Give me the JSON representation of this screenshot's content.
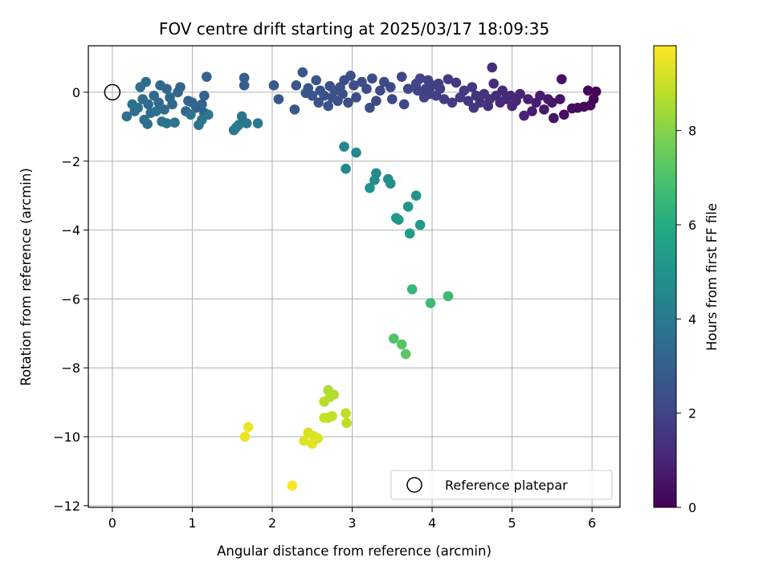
{
  "chart_data": {
    "type": "scatter",
    "title": "FOV centre drift starting at 2025/03/17 18:09:35",
    "xlabel": "Angular distance from reference (arcmin)",
    "ylabel": "Rotation from reference (arcmin)",
    "xlim": [
      -0.3,
      6.35
    ],
    "ylim": [
      -12.05,
      1.35
    ],
    "xticks": [
      "0",
      "1",
      "2",
      "3",
      "4",
      "5",
      "6"
    ],
    "yticks": [
      "0",
      "−2",
      "−4",
      "−6",
      "−8",
      "−10",
      "−12"
    ],
    "grid": true,
    "legend": {
      "placement": "lower-right",
      "entries": [
        "Reference platepar"
      ]
    },
    "reference_point": {
      "x": 0,
      "y": 0,
      "marker": "open-circle"
    },
    "colorbar": {
      "label": "Hours from first FF file",
      "range": [
        0,
        9.8
      ],
      "ticks": [
        "0",
        "2",
        "4",
        "6",
        "8"
      ],
      "colormap": "viridis"
    },
    "series": [
      {
        "color_by": "hours",
        "points": [
          {
            "x": 6.02,
            "y": -0.2,
            "h": 0.05
          },
          {
            "x": 6.05,
            "y": 0.02,
            "h": 0.1
          },
          {
            "x": 5.95,
            "y": 0.05,
            "h": 0.15
          },
          {
            "x": 5.98,
            "y": -0.38,
            "h": 0.2
          },
          {
            "x": 5.9,
            "y": -0.42,
            "h": 0.25
          },
          {
            "x": 5.82,
            "y": -0.45,
            "h": 0.3
          },
          {
            "x": 5.75,
            "y": -0.47,
            "h": 0.35
          },
          {
            "x": 5.65,
            "y": -0.65,
            "h": 0.4
          },
          {
            "x": 5.62,
            "y": 0.38,
            "h": 0.45
          },
          {
            "x": 5.6,
            "y": -0.2,
            "h": 0.5
          },
          {
            "x": 5.52,
            "y": -0.75,
            "h": 0.55
          },
          {
            "x": 5.5,
            "y": -0.3,
            "h": 0.6
          },
          {
            "x": 5.45,
            "y": -0.2,
            "h": 0.65
          },
          {
            "x": 5.4,
            "y": -0.5,
            "h": 0.7
          },
          {
            "x": 5.35,
            "y": -0.1,
            "h": 0.75
          },
          {
            "x": 5.3,
            "y": -0.3,
            "h": 0.8
          },
          {
            "x": 5.25,
            "y": -0.55,
            "h": 0.85
          },
          {
            "x": 5.2,
            "y": -0.2,
            "h": 0.9
          },
          {
            "x": 5.15,
            "y": -0.68,
            "h": 0.95
          },
          {
            "x": 5.1,
            "y": -0.05,
            "h": 1.0
          },
          {
            "x": 5.05,
            "y": -0.25,
            "h": 1.05
          },
          {
            "x": 5.0,
            "y": -0.4,
            "h": 1.1
          },
          {
            "x": 4.98,
            "y": -0.1,
            "h": 1.12
          },
          {
            "x": 4.92,
            "y": -0.2,
            "h": 1.15
          },
          {
            "x": 4.88,
            "y": 0.05,
            "h": 1.18
          },
          {
            "x": 4.85,
            "y": -0.3,
            "h": 1.2
          },
          {
            "x": 4.8,
            "y": -0.1,
            "h": 1.25
          },
          {
            "x": 4.77,
            "y": 0.25,
            "h": 1.3
          },
          {
            "x": 4.75,
            "y": 0.72,
            "h": 1.33
          },
          {
            "x": 4.72,
            "y": -0.2,
            "h": 1.35
          },
          {
            "x": 4.7,
            "y": -0.4,
            "h": 1.38
          },
          {
            "x": 4.65,
            "y": -0.05,
            "h": 1.4
          },
          {
            "x": 4.6,
            "y": -0.3,
            "h": 1.45
          },
          {
            "x": 4.55,
            "y": -0.1,
            "h": 1.5
          },
          {
            "x": 4.52,
            "y": -0.45,
            "h": 1.52
          },
          {
            "x": 4.5,
            "y": 0.15,
            "h": 1.55
          },
          {
            "x": 4.45,
            "y": -0.25,
            "h": 1.6
          },
          {
            "x": 4.4,
            "y": 0.05,
            "h": 1.62
          },
          {
            "x": 4.35,
            "y": -0.15,
            "h": 1.65
          },
          {
            "x": 4.3,
            "y": 0.28,
            "h": 1.68
          },
          {
            "x": 4.25,
            "y": -0.3,
            "h": 1.7
          },
          {
            "x": 4.2,
            "y": 0.38,
            "h": 1.72
          },
          {
            "x": 4.15,
            "y": -0.2,
            "h": 1.75
          },
          {
            "x": 4.1,
            "y": 0.1,
            "h": 1.78
          },
          {
            "x": 4.08,
            "y": 0.25,
            "h": 1.8
          },
          {
            "x": 4.05,
            "y": -0.1,
            "h": 1.82
          },
          {
            "x": 4.0,
            "y": 0.2,
            "h": 1.85
          },
          {
            "x": 3.98,
            "y": -0.05,
            "h": 1.86
          },
          {
            "x": 3.95,
            "y": 0.35,
            "h": 1.88
          },
          {
            "x": 3.92,
            "y": 0.1,
            "h": 1.9
          },
          {
            "x": 3.9,
            "y": -0.15,
            "h": 1.92
          },
          {
            "x": 3.85,
            "y": 0.4,
            "h": 1.95
          },
          {
            "x": 3.82,
            "y": 0.05,
            "h": 1.97
          },
          {
            "x": 3.8,
            "y": 0.25,
            "h": 2.0
          },
          {
            "x": 3.7,
            "y": 0.1,
            "h": 2.03
          },
          {
            "x": 3.65,
            "y": -0.35,
            "h": 2.05
          },
          {
            "x": 3.62,
            "y": 0.45,
            "h": 2.07
          },
          {
            "x": 3.5,
            "y": -0.2,
            "h": 2.1
          },
          {
            "x": 3.48,
            "y": 0.15,
            "h": 2.12
          },
          {
            "x": 3.4,
            "y": 0.3,
            "h": 2.15
          },
          {
            "x": 3.35,
            "y": 0.05,
            "h": 2.17
          },
          {
            "x": 3.3,
            "y": -0.25,
            "h": 2.19
          },
          {
            "x": 3.25,
            "y": 0.4,
            "h": 2.2
          },
          {
            "x": 3.22,
            "y": -0.45,
            "h": 2.22
          },
          {
            "x": 3.18,
            "y": 0.1,
            "h": 2.24
          },
          {
            "x": 3.12,
            "y": 0.3,
            "h": 2.26
          },
          {
            "x": 3.05,
            "y": -0.15,
            "h": 2.28
          },
          {
            "x": 3.02,
            "y": 0.2,
            "h": 2.3
          },
          {
            "x": 2.98,
            "y": 0.48,
            "h": 2.31
          },
          {
            "x": 2.95,
            "y": -0.3,
            "h": 2.32
          },
          {
            "x": 2.9,
            "y": 0.35,
            "h": 2.34
          },
          {
            "x": 2.88,
            "y": -0.05,
            "h": 2.36
          },
          {
            "x": 2.85,
            "y": 0.15,
            "h": 2.38
          },
          {
            "x": 2.82,
            "y": -0.25,
            "h": 2.4
          },
          {
            "x": 2.78,
            "y": 0.05,
            "h": 2.42
          },
          {
            "x": 2.75,
            "y": -0.15,
            "h": 2.44
          },
          {
            "x": 2.72,
            "y": 0.18,
            "h": 2.46
          },
          {
            "x": 2.7,
            "y": -0.4,
            "h": 2.48
          },
          {
            "x": 2.65,
            "y": -0.1,
            "h": 2.5
          },
          {
            "x": 2.6,
            "y": 0.05,
            "h": 2.52
          },
          {
            "x": 2.58,
            "y": -0.3,
            "h": 2.54
          },
          {
            "x": 2.55,
            "y": 0.35,
            "h": 2.56
          },
          {
            "x": 2.5,
            "y": -0.1,
            "h": 2.58
          },
          {
            "x": 2.45,
            "y": 0.12,
            "h": 2.6
          },
          {
            "x": 2.42,
            "y": -0.02,
            "h": 2.62
          },
          {
            "x": 2.38,
            "y": 0.58,
            "h": 2.64
          },
          {
            "x": 2.3,
            "y": 0.2,
            "h": 2.66
          },
          {
            "x": 2.28,
            "y": -0.5,
            "h": 2.68
          },
          {
            "x": 2.08,
            "y": -0.2,
            "h": 2.7
          },
          {
            "x": 2.02,
            "y": 0.2,
            "h": 2.72
          },
          {
            "x": 1.65,
            "y": 0.42,
            "h": 2.9
          },
          {
            "x": 1.65,
            "y": 0.2,
            "h": 2.92
          },
          {
            "x": 1.18,
            "y": 0.45,
            "h": 3.0
          },
          {
            "x": 1.15,
            "y": -0.1,
            "h": 3.02
          },
          {
            "x": 1.12,
            "y": -0.35,
            "h": 3.05
          },
          {
            "x": 1.15,
            "y": -0.6,
            "h": 3.08
          },
          {
            "x": 1.05,
            "y": -0.45,
            "h": 3.1
          },
          {
            "x": 1.0,
            "y": -0.3,
            "h": 3.12
          },
          {
            "x": 0.95,
            "y": -0.25,
            "h": 3.15
          },
          {
            "x": 0.92,
            "y": -0.55,
            "h": 3.18
          },
          {
            "x": 0.85,
            "y": 0.15,
            "h": 3.2
          },
          {
            "x": 0.82,
            "y": 0.0,
            "h": 3.22
          },
          {
            "x": 0.75,
            "y": -0.35,
            "h": 3.25
          },
          {
            "x": 0.72,
            "y": -0.15,
            "h": 3.27
          },
          {
            "x": 0.68,
            "y": 0.1,
            "h": 3.3
          },
          {
            "x": 0.65,
            "y": -0.5,
            "h": 3.32
          },
          {
            "x": 0.6,
            "y": 0.2,
            "h": 3.35
          },
          {
            "x": 0.58,
            "y": -0.3,
            "h": 3.38
          },
          {
            "x": 0.52,
            "y": -0.1,
            "h": 3.4
          },
          {
            "x": 0.48,
            "y": -0.6,
            "h": 3.42
          },
          {
            "x": 0.45,
            "y": -0.35,
            "h": 3.45
          },
          {
            "x": 0.42,
            "y": 0.3,
            "h": 3.47
          },
          {
            "x": 0.38,
            "y": -0.2,
            "h": 3.5
          },
          {
            "x": 0.35,
            "y": 0.15,
            "h": 3.52
          },
          {
            "x": 0.32,
            "y": -0.45,
            "h": 3.55
          },
          {
            "x": 0.28,
            "y": -0.55,
            "h": 3.58
          },
          {
            "x": 0.25,
            "y": -0.35,
            "h": 3.6
          },
          {
            "x": 0.18,
            "y": -0.7,
            "h": 3.62
          },
          {
            "x": 0.4,
            "y": -0.8,
            "h": 3.64
          },
          {
            "x": 0.44,
            "y": -0.92,
            "h": 3.66
          },
          {
            "x": 0.62,
            "y": -0.85,
            "h": 3.68
          },
          {
            "x": 0.68,
            "y": -0.9,
            "h": 3.7
          },
          {
            "x": 0.78,
            "y": -0.88,
            "h": 3.72
          },
          {
            "x": 0.55,
            "y": -0.55,
            "h": 3.74
          },
          {
            "x": 0.98,
            "y": -0.65,
            "h": 3.76
          },
          {
            "x": 1.08,
            "y": -0.95,
            "h": 3.78
          },
          {
            "x": 1.12,
            "y": -0.8,
            "h": 3.8
          },
          {
            "x": 1.2,
            "y": -0.65,
            "h": 3.82
          },
          {
            "x": 1.62,
            "y": -0.7,
            "h": 3.85
          },
          {
            "x": 1.68,
            "y": -0.9,
            "h": 3.88
          },
          {
            "x": 1.58,
            "y": -0.95,
            "h": 3.9
          },
          {
            "x": 1.52,
            "y": -1.1,
            "h": 3.92
          },
          {
            "x": 1.55,
            "y": -1.02,
            "h": 3.94
          },
          {
            "x": 1.82,
            "y": -0.9,
            "h": 3.96
          },
          {
            "x": 2.9,
            "y": -1.58,
            "h": 4.5
          },
          {
            "x": 3.05,
            "y": -1.75,
            "h": 4.55
          },
          {
            "x": 2.92,
            "y": -2.22,
            "h": 4.6
          },
          {
            "x": 3.3,
            "y": -2.35,
            "h": 4.7
          },
          {
            "x": 3.28,
            "y": -2.55,
            "h": 4.75
          },
          {
            "x": 3.45,
            "y": -2.52,
            "h": 4.8
          },
          {
            "x": 3.48,
            "y": -2.65,
            "h": 4.85
          },
          {
            "x": 3.22,
            "y": -2.78,
            "h": 4.9
          },
          {
            "x": 3.8,
            "y": -3.0,
            "h": 5.0
          },
          {
            "x": 3.7,
            "y": -3.32,
            "h": 5.1
          },
          {
            "x": 3.55,
            "y": -3.65,
            "h": 5.2
          },
          {
            "x": 3.58,
            "y": -3.7,
            "h": 5.25
          },
          {
            "x": 3.85,
            "y": -3.85,
            "h": 5.3
          },
          {
            "x": 3.72,
            "y": -4.1,
            "h": 5.4
          },
          {
            "x": 3.75,
            "y": -5.72,
            "h": 6.5
          },
          {
            "x": 4.2,
            "y": -5.92,
            "h": 6.6
          },
          {
            "x": 3.98,
            "y": -6.12,
            "h": 6.7
          },
          {
            "x": 3.52,
            "y": -7.15,
            "h": 7.1
          },
          {
            "x": 3.62,
            "y": -7.32,
            "h": 7.2
          },
          {
            "x": 3.67,
            "y": -7.6,
            "h": 7.3
          },
          {
            "x": 2.7,
            "y": -8.65,
            "h": 8.6
          },
          {
            "x": 2.77,
            "y": -8.78,
            "h": 8.65
          },
          {
            "x": 2.72,
            "y": -8.85,
            "h": 8.7
          },
          {
            "x": 2.65,
            "y": -8.98,
            "h": 8.75
          },
          {
            "x": 2.92,
            "y": -9.32,
            "h": 8.8
          },
          {
            "x": 2.93,
            "y": -9.6,
            "h": 8.85
          },
          {
            "x": 2.75,
            "y": -9.4,
            "h": 8.9
          },
          {
            "x": 2.7,
            "y": -9.45,
            "h": 8.92
          },
          {
            "x": 2.65,
            "y": -9.45,
            "h": 8.95
          },
          {
            "x": 2.45,
            "y": -9.88,
            "h": 9.2
          },
          {
            "x": 2.52,
            "y": -9.98,
            "h": 9.25
          },
          {
            "x": 2.57,
            "y": -10.05,
            "h": 9.3
          },
          {
            "x": 2.4,
            "y": -10.12,
            "h": 9.35
          },
          {
            "x": 2.5,
            "y": -10.2,
            "h": 9.4
          },
          {
            "x": 1.7,
            "y": -9.72,
            "h": 9.5
          },
          {
            "x": 1.66,
            "y": -10.0,
            "h": 9.55
          },
          {
            "x": 2.25,
            "y": -11.42,
            "h": 9.7
          }
        ]
      }
    ]
  }
}
